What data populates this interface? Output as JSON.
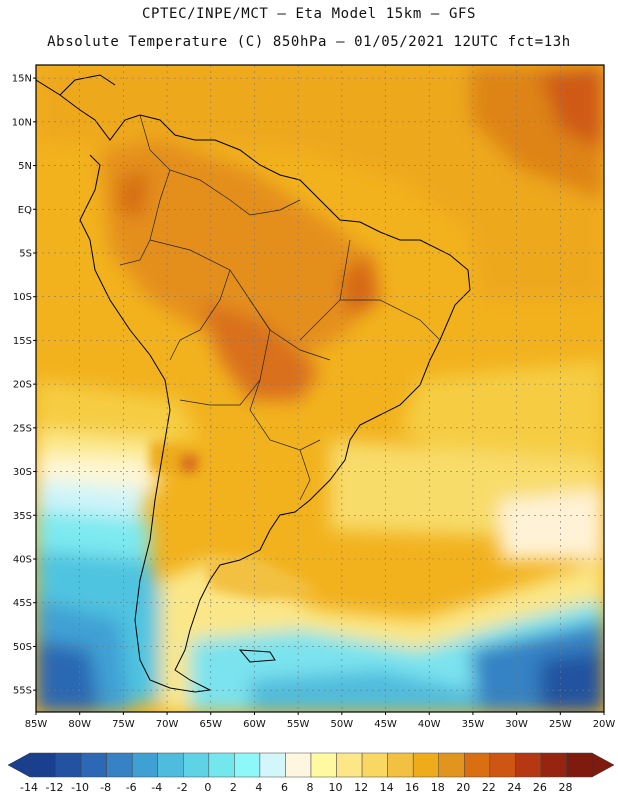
{
  "header": {
    "line1": "CPTEC/INPE/MCT –  Eta Model 15km – GFS",
    "line2": "Absolute Temperature (C) 850hPa – 01/05/2021 12UTC fct=13h"
  },
  "map": {
    "lon_range": [
      -85,
      -20
    ],
    "lat_range": [
      -57.5,
      16.5
    ],
    "lat_labels": [
      "15N",
      "10N",
      "5N",
      "EQ",
      "5S",
      "10S",
      "15S",
      "20S",
      "25S",
      "30S",
      "35S",
      "40S",
      "45S",
      "50S",
      "55S"
    ],
    "lon_labels": [
      "85W",
      "80W",
      "75W",
      "70W",
      "65W",
      "60W",
      "55W",
      "50W",
      "45W",
      "40W",
      "35W",
      "30W",
      "25W",
      "20W"
    ]
  },
  "colorbar": {
    "labels": [
      "-14",
      "-12",
      "-10",
      "-8",
      "-6",
      "-4",
      "-2",
      "0",
      "2",
      "4",
      "6",
      "8",
      "10",
      "12",
      "14",
      "16",
      "18",
      "20",
      "22",
      "24",
      "26",
      "28"
    ],
    "colors": [
      "#1a3f8f",
      "#2352a0",
      "#2c68b4",
      "#3682c4",
      "#3fa0d4",
      "#4fbcdd",
      "#5fd3e6",
      "#73e6ee",
      "#8ef7f7",
      "#d3f6fb",
      "#fff6e0",
      "#fff9a0",
      "#fbe788",
      "#f8d862",
      "#f2c142",
      "#eeab1a",
      "#e2951e",
      "#da6f12",
      "#cd5612",
      "#b53812",
      "#962410",
      "#7e1a0e"
    ]
  }
}
